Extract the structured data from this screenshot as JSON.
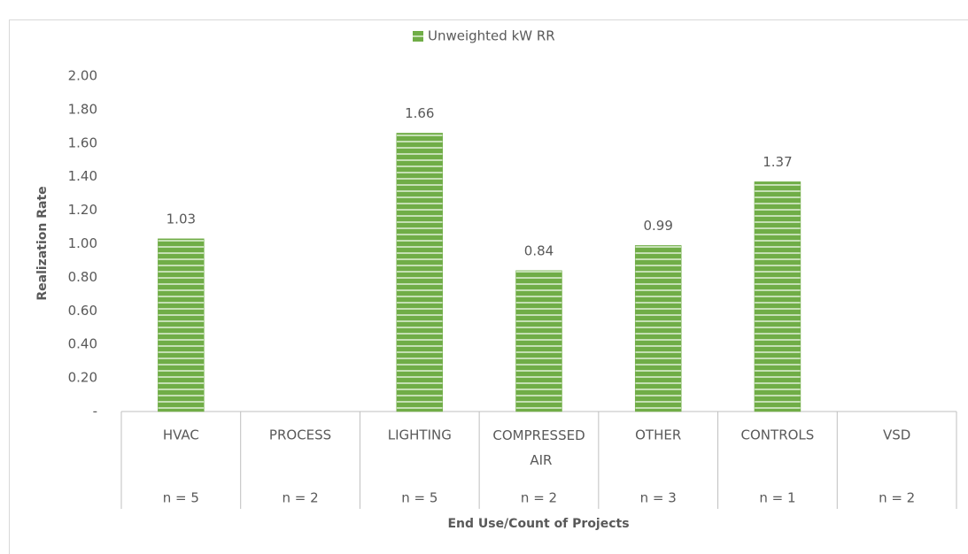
{
  "chart_data": {
    "type": "bar",
    "categories": [
      "HVAC",
      "PROCESS",
      "LIGHTING",
      "COMPRESSED AIR",
      "OTHER",
      "CONTROLS",
      "VSD"
    ],
    "subcategories": [
      "n = 5",
      "n = 2",
      "n = 5",
      "n = 2",
      "n = 3",
      "n = 1",
      "n = 2"
    ],
    "series": [
      {
        "name": "Unweighted kW RR",
        "color": "#70ad47",
        "values": [
          1.03,
          null,
          1.66,
          0.84,
          0.99,
          1.37,
          null
        ]
      }
    ],
    "ylim": [
      0,
      2
    ],
    "yticks": [
      {
        "value": 0,
        "label": "-"
      },
      {
        "value": 0.2,
        "label": "0.20"
      },
      {
        "value": 0.4,
        "label": "0.40"
      },
      {
        "value": 0.6,
        "label": "0.60"
      },
      {
        "value": 0.8,
        "label": "0.80"
      },
      {
        "value": 1.0,
        "label": "1.00"
      },
      {
        "value": 1.2,
        "label": "1.20"
      },
      {
        "value": 1.4,
        "label": "1.40"
      },
      {
        "value": 1.6,
        "label": "1.60"
      },
      {
        "value": 1.8,
        "label": "1.80"
      },
      {
        "value": 2.0,
        "label": "2.00"
      }
    ],
    "xlabel": "End Use/Count of Projects",
    "ylabel": "Realization Rate",
    "legend": "top",
    "grid": false
  }
}
